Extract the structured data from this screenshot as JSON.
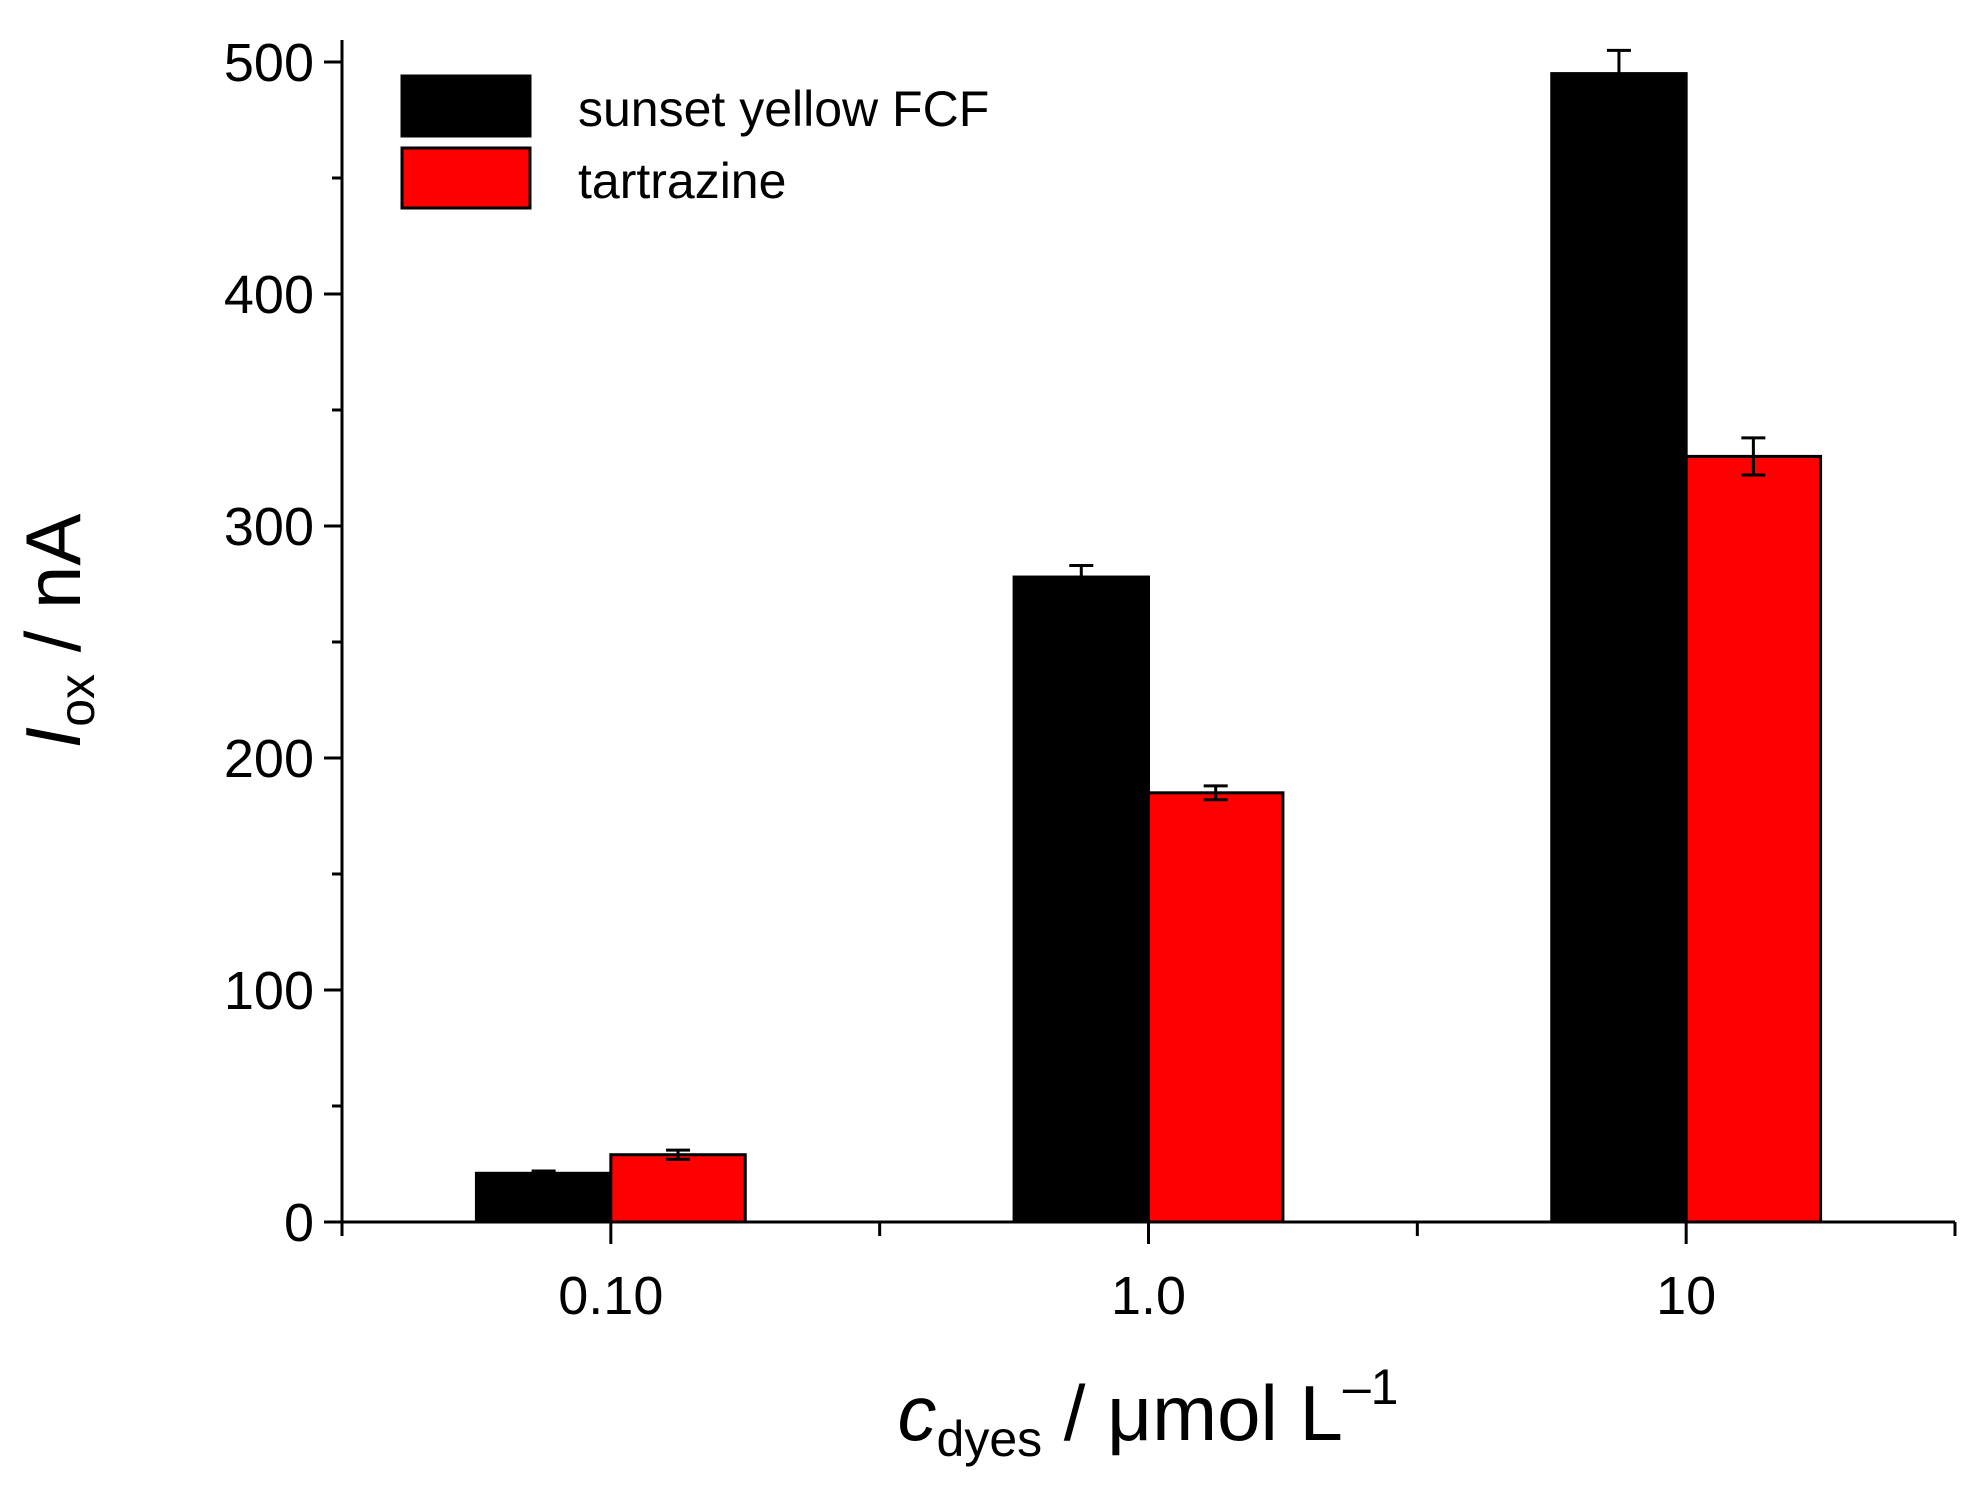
{
  "chart_data": {
    "type": "bar",
    "categories": [
      "0.10",
      "1.0",
      "10"
    ],
    "series": [
      {
        "name": "sunset yellow FCF",
        "color": "#000000",
        "values": [
          21,
          278,
          495
        ],
        "errors": [
          1,
          5,
          10
        ]
      },
      {
        "name": "tartrazine",
        "color": "#ff0000",
        "values": [
          29,
          185,
          330
        ],
        "errors": [
          2,
          3,
          8
        ]
      }
    ],
    "ylim": [
      0,
      500
    ],
    "yticks": [
      "0",
      "100",
      "200",
      "300",
      "400",
      "500"
    ],
    "ylabel": {
      "main": "I",
      "sub": "ox",
      "rest": " / nA"
    },
    "xlabel": {
      "main": "c",
      "sub": "dyes",
      "rest": " / μmol L",
      "sup": "–1"
    },
    "legend_position": "top-left",
    "grid": false
  }
}
